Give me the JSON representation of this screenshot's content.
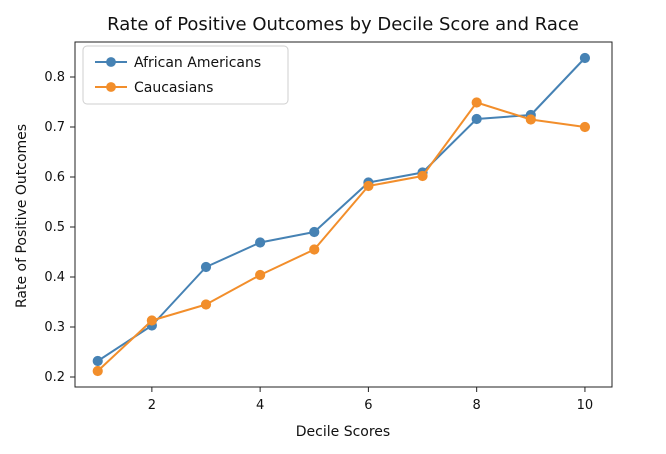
{
  "chart_data": {
    "type": "line",
    "title": "Rate of Positive Outcomes by Decile Score and Race",
    "xlabel": "Decile Scores",
    "ylabel": "Rate of Positive Outcomes",
    "x": [
      1,
      2,
      3,
      4,
      5,
      6,
      7,
      8,
      9,
      10
    ],
    "xlim": [
      0.58,
      10.5
    ],
    "ylim": [
      0.18,
      0.87
    ],
    "xticks": [
      2,
      4,
      6,
      8,
      10
    ],
    "xtick_labels": [
      "2",
      "4",
      "6",
      "8",
      "10"
    ],
    "yticks": [
      0.2,
      0.3,
      0.4,
      0.5,
      0.6,
      0.7,
      0.8
    ],
    "ytick_labels": [
      "0.2",
      "0.3",
      "0.4",
      "0.5",
      "0.6",
      "0.7",
      "0.8"
    ],
    "grid": false,
    "legend_position": "top-left",
    "series": [
      {
        "name": "African Americans",
        "color": "#4682b4",
        "values": [
          0.232,
          0.303,
          0.42,
          0.469,
          0.49,
          0.589,
          0.609,
          0.716,
          0.724,
          0.838
        ]
      },
      {
        "name": "Caucasians",
        "color": "#f28e2b",
        "values": [
          0.212,
          0.313,
          0.345,
          0.404,
          0.455,
          0.582,
          0.602,
          0.749,
          0.715,
          0.7
        ]
      }
    ]
  }
}
